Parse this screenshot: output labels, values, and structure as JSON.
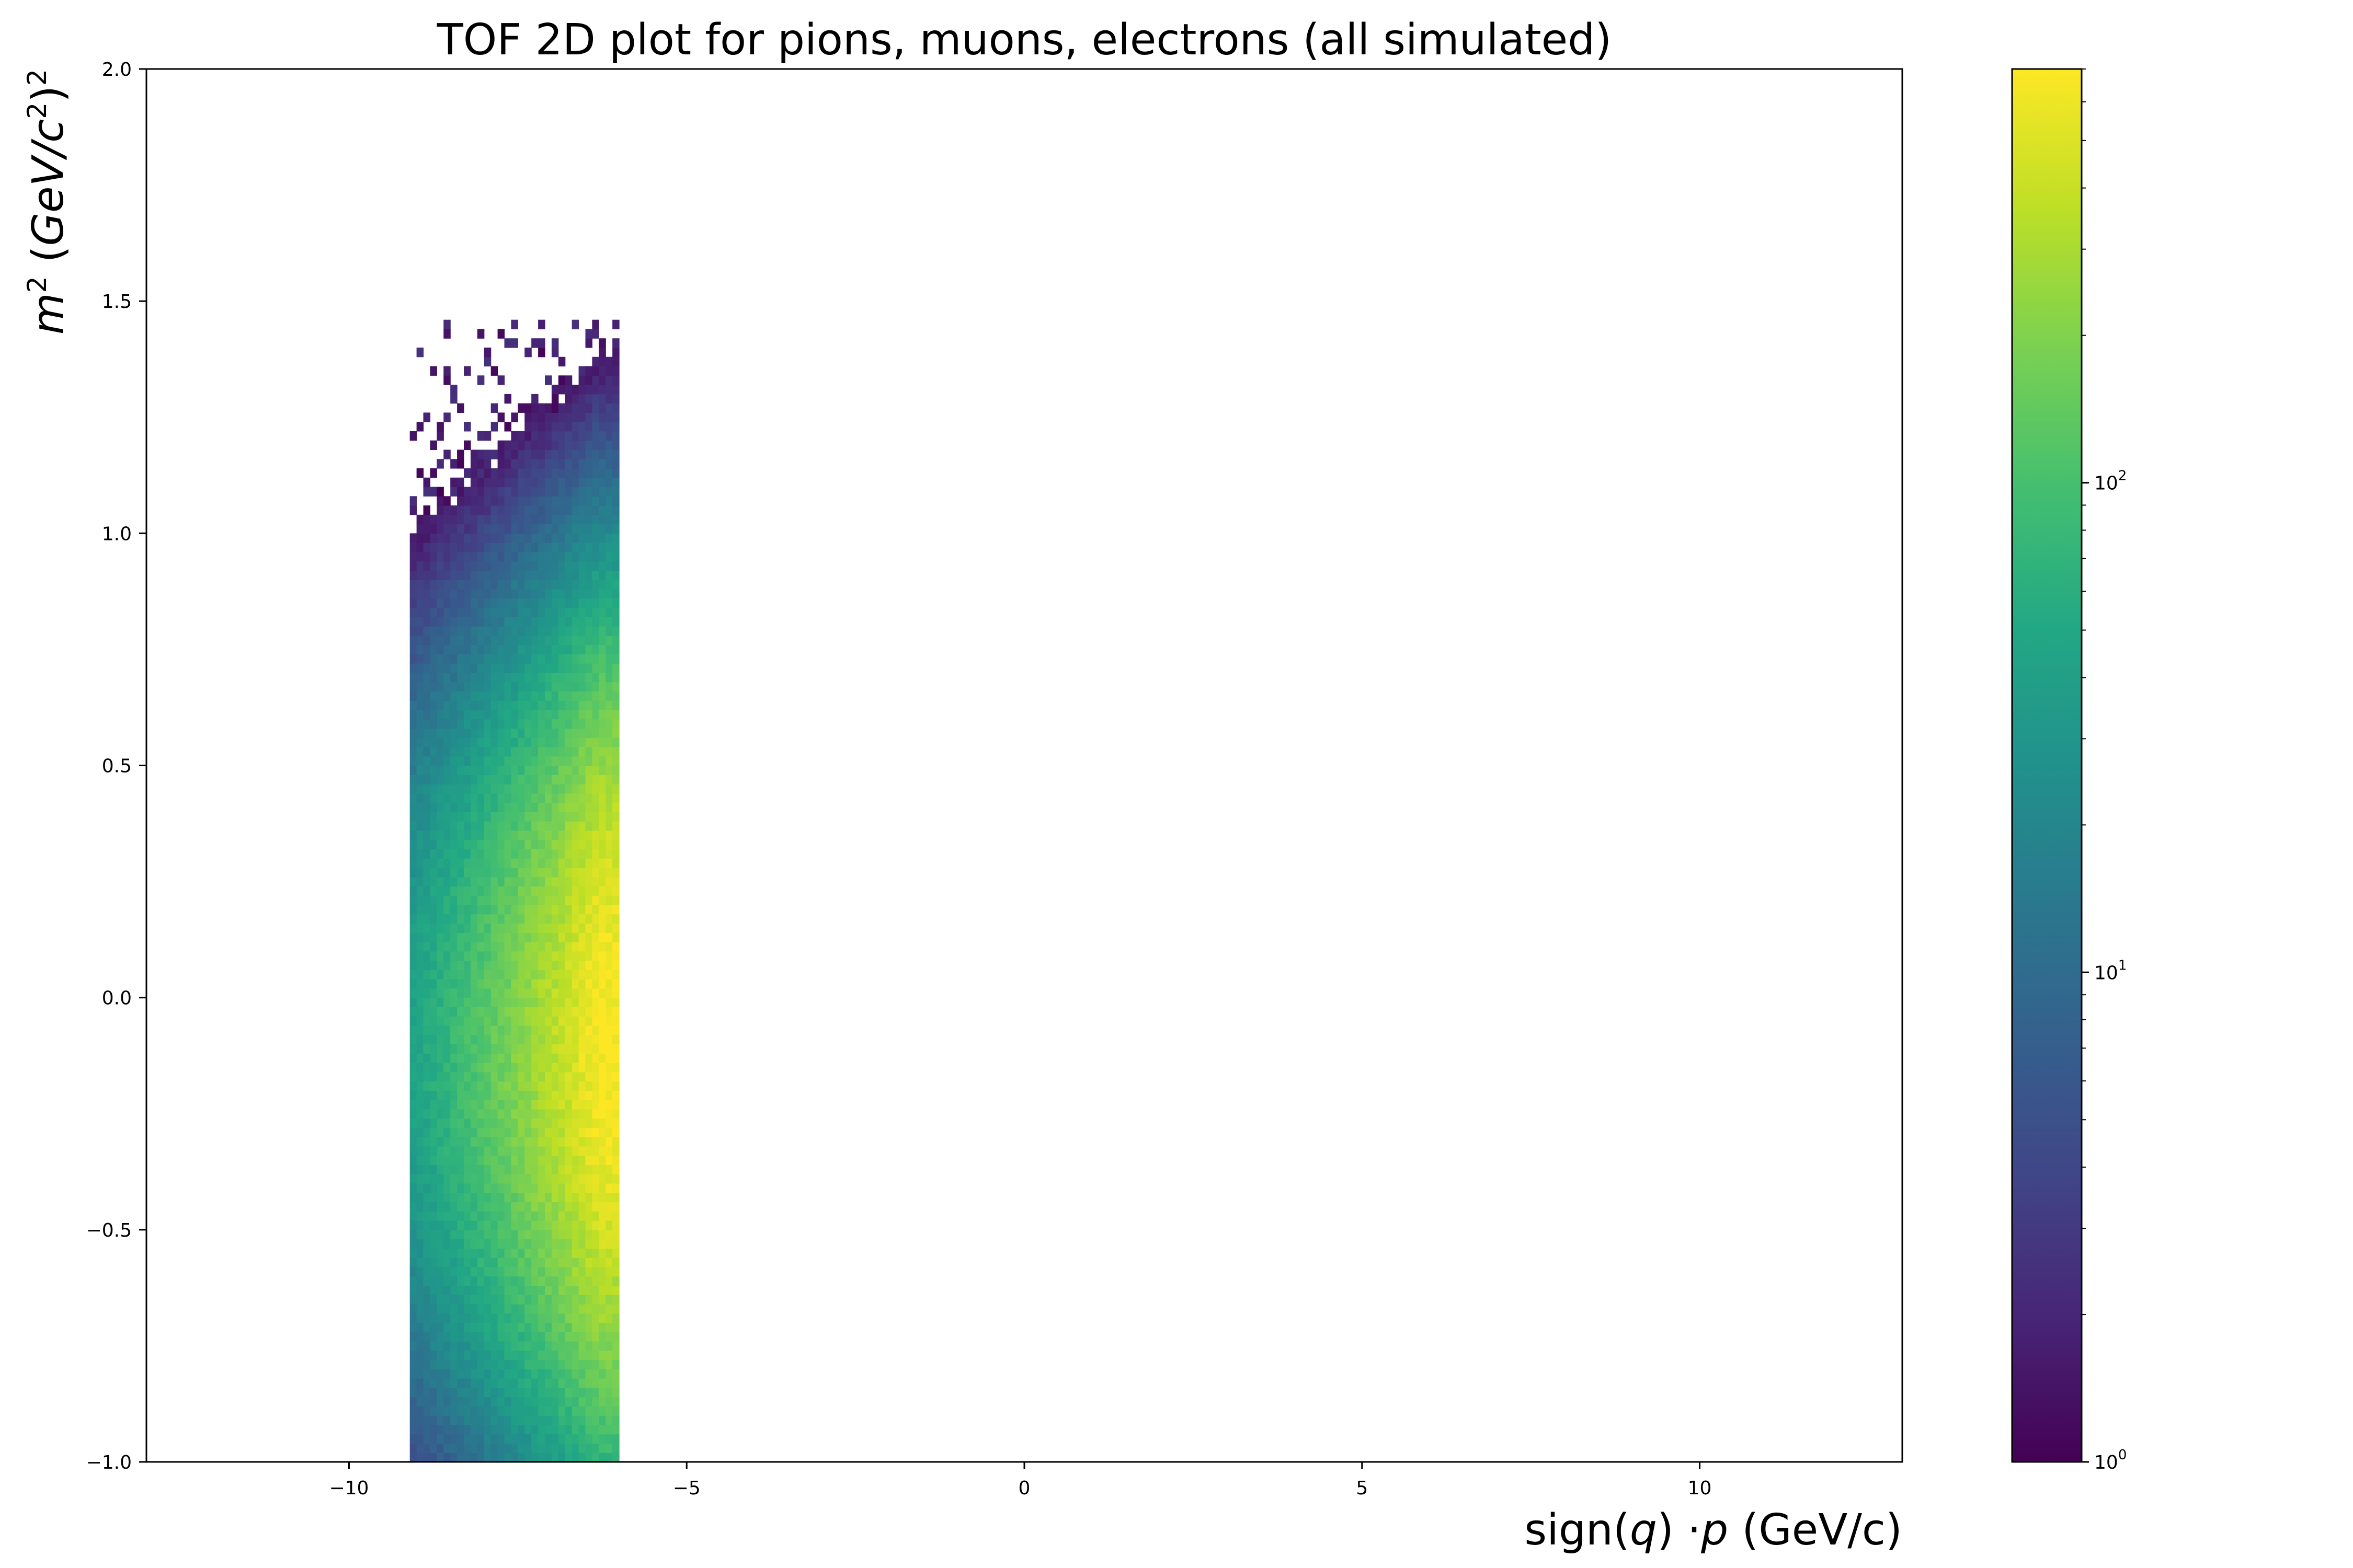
{
  "chart_data": {
    "type": "heatmap",
    "title": "TOF 2D plot for pions, muons, electrons (all simulated)",
    "xlabel": {
      "pre": "sign(",
      "var": "q",
      "mid": ") ·",
      "var2": "p",
      "post": " (GeV/c)"
    },
    "ylabel": {
      "m": "m",
      "sq": "2",
      "open": " (",
      "unit": "GeV/c",
      "csq": "2",
      "close": ")",
      "outsq": "2"
    },
    "xlim": [
      -13,
      13
    ],
    "ylim": [
      -1.0,
      2.0
    ],
    "x_ticks": [
      -10,
      -5,
      0,
      5,
      10
    ],
    "x_tick_labels": [
      "−10",
      "−5",
      "0",
      "5",
      "10"
    ],
    "y_ticks": [
      -1.0,
      -0.5,
      0.0,
      0.5,
      1.0,
      1.5,
      2.0
    ],
    "y_tick_labels": [
      "−1.0",
      "−0.5",
      "0.0",
      "0.5",
      "1.0",
      "1.5",
      "2.0"
    ],
    "colorbar": {
      "scale": "log",
      "colormap": "viridis",
      "range": [
        1,
        700
      ],
      "ticks": [
        {
          "value": 1,
          "base": "10",
          "exp": "0"
        },
        {
          "value": 10,
          "base": "10",
          "exp": "1"
        },
        {
          "value": 100,
          "base": "10",
          "exp": "2"
        }
      ]
    },
    "histogram": {
      "x_range": [
        -9.1,
        -6.0
      ],
      "y_range": [
        -1.0,
        1.45
      ],
      "bin_width_x": 0.1,
      "bin_height_y": 0.02,
      "peak": {
        "x": -6.3,
        "y": -0.1,
        "count": 700
      },
      "count_falloff_x_per_GeVc": 1.0,
      "count_falloff_y_sigma": 0.42,
      "sparse_above_m2": 0.9
    },
    "colors": {
      "viridis_stops": [
        "#440154",
        "#482475",
        "#414487",
        "#355f8d",
        "#2a788e",
        "#21918c",
        "#22a884",
        "#44bf70",
        "#7ad151",
        "#bddf26",
        "#fde725"
      ]
    }
  }
}
